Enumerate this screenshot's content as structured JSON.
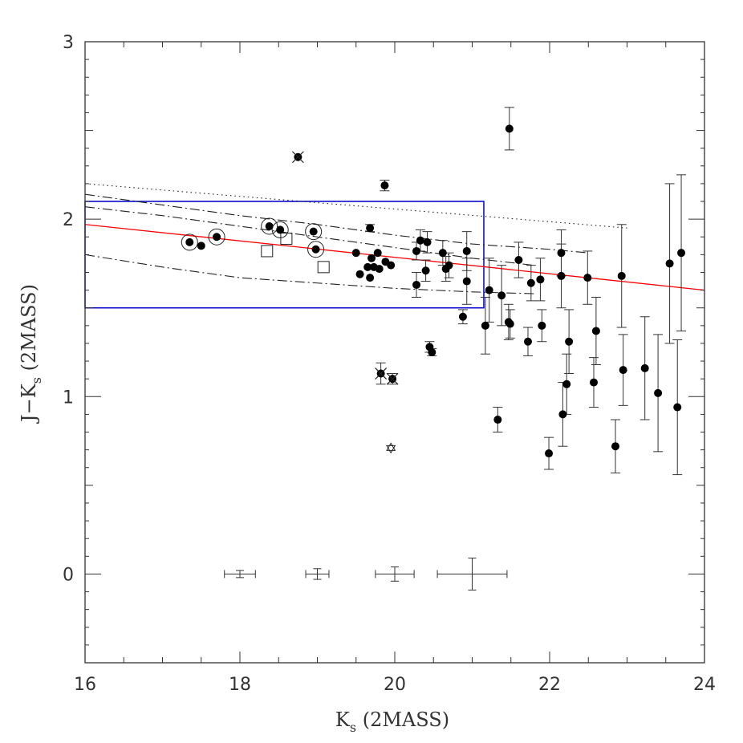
{
  "chart_data": {
    "type": "scatter",
    "title": "",
    "xlabel": {
      "main": "K",
      "sub": "s",
      "rest": " (2MASS)"
    },
    "ylabel": {
      "main": "J−K",
      "sub": "s",
      "rest": " (2MASS)"
    },
    "xlim": [
      16,
      24
    ],
    "ylim": [
      -0.5,
      3
    ],
    "xticks": [
      "16",
      "18",
      "20",
      "22",
      "24"
    ],
    "yticks": [
      "0",
      "1",
      "2",
      "3"
    ],
    "grid": false,
    "colors": {
      "frame": "#333333",
      "box": "#0000cc",
      "fit_line": "#ff0000",
      "points": "#000000"
    },
    "selection_box": {
      "x": [
        16,
        21.15
      ],
      "y": [
        1.5,
        2.1
      ]
    },
    "fit_line": {
      "x": [
        16,
        24
      ],
      "y": [
        1.97,
        1.6
      ]
    },
    "model_curves": [
      {
        "style": "dotted",
        "x": [
          16,
          23
        ],
        "y": [
          2.2,
          1.95
        ]
      },
      {
        "style": "dashdot",
        "x": [
          16,
          17,
          18,
          19,
          20,
          21,
          22,
          22.5
        ],
        "y": [
          2.14,
          2.08,
          2.02,
          1.97,
          1.91,
          1.86,
          1.83,
          1.81
        ]
      },
      {
        "style": "dashdot",
        "x": [
          16,
          17,
          18,
          19,
          20,
          21,
          21.8
        ],
        "y": [
          2.07,
          2.02,
          1.96,
          1.9,
          1.84,
          1.78,
          1.74
        ]
      },
      {
        "style": "dashdot",
        "x": [
          16,
          17,
          18,
          19,
          20,
          21,
          21.8
        ],
        "y": [
          1.8,
          1.73,
          1.67,
          1.64,
          1.61,
          1.59,
          1.58
        ]
      }
    ],
    "points_filled": [
      {
        "x": 17.35,
        "y": 1.87
      },
      {
        "x": 17.5,
        "y": 1.85
      },
      {
        "x": 17.7,
        "y": 1.9
      },
      {
        "x": 18.38,
        "y": 1.96
      },
      {
        "x": 18.52,
        "y": 1.94
      },
      {
        "x": 18.95,
        "y": 1.93
      },
      {
        "x": 18.98,
        "y": 1.83
      },
      {
        "x": 18.75,
        "y": 2.35
      },
      {
        "x": 19.5,
        "y": 1.81
      },
      {
        "x": 19.55,
        "y": 1.69
      },
      {
        "x": 19.65,
        "y": 1.73
      },
      {
        "x": 19.68,
        "y": 1.67
      },
      {
        "x": 19.7,
        "y": 1.78
      },
      {
        "x": 19.73,
        "y": 1.73
      },
      {
        "x": 19.78,
        "y": 1.81
      },
      {
        "x": 19.8,
        "y": 1.72
      },
      {
        "x": 19.88,
        "y": 1.76
      },
      {
        "x": 19.95,
        "y": 1.74
      },
      {
        "x": 19.68,
        "y": 1.95,
        "err": 0.02
      },
      {
        "x": 19.87,
        "y": 2.19,
        "err": 0.03
      },
      {
        "x": 19.82,
        "y": 1.13,
        "err": 0.06
      },
      {
        "x": 19.97,
        "y": 1.1,
        "err": 0.03
      },
      {
        "x": 20.28,
        "y": 1.82,
        "err": 0.05
      },
      {
        "x": 20.33,
        "y": 1.88,
        "err": 0.06
      },
      {
        "x": 20.42,
        "y": 1.87,
        "err": 0.06
      },
      {
        "x": 20.28,
        "y": 1.63,
        "err": 0.07
      },
      {
        "x": 20.4,
        "y": 1.71,
        "err": 0.06
      },
      {
        "x": 20.45,
        "y": 1.28,
        "err": 0.03
      },
      {
        "x": 20.48,
        "y": 1.25,
        "err": 0.02
      },
      {
        "x": 20.62,
        "y": 1.81,
        "err": 0.07
      },
      {
        "x": 20.66,
        "y": 1.72,
        "err": 0.07
      },
      {
        "x": 20.7,
        "y": 1.74,
        "err": 0.07
      },
      {
        "x": 20.88,
        "y": 1.45,
        "err": 0.04
      },
      {
        "x": 20.93,
        "y": 1.82,
        "err": 0.11
      },
      {
        "x": 20.93,
        "y": 1.65,
        "err": 0.13
      },
      {
        "x": 21.17,
        "y": 1.4,
        "err": 0.16
      },
      {
        "x": 21.22,
        "y": 1.6,
        "err": 0.18
      },
      {
        "x": 21.33,
        "y": 0.87,
        "err": 0.07
      },
      {
        "x": 21.38,
        "y": 1.57,
        "err": 0.17
      },
      {
        "x": 21.47,
        "y": 1.42,
        "err": 0.1
      },
      {
        "x": 21.49,
        "y": 1.41,
        "err": 0.08
      },
      {
        "x": 21.48,
        "y": 2.51,
        "err": 0.12
      },
      {
        "x": 21.6,
        "y": 1.77,
        "err": 0.1
      },
      {
        "x": 21.72,
        "y": 1.31,
        "err": 0.08
      },
      {
        "x": 21.76,
        "y": 1.64,
        "err": 0.1
      },
      {
        "x": 21.88,
        "y": 1.66,
        "err": 0.12
      },
      {
        "x": 21.9,
        "y": 1.4,
        "err": 0.09
      },
      {
        "x": 21.99,
        "y": 0.68,
        "err": 0.09
      },
      {
        "x": 22.15,
        "y": 1.81,
        "err": 0.13
      },
      {
        "x": 22.15,
        "y": 1.68,
        "err": 0.18
      },
      {
        "x": 22.17,
        "y": 0.9,
        "err": 0.18
      },
      {
        "x": 22.22,
        "y": 1.07,
        "err": 0.17
      },
      {
        "x": 22.25,
        "y": 1.31,
        "err": 0.18
      },
      {
        "x": 22.49,
        "y": 1.67,
        "err": 0.15
      },
      {
        "x": 22.57,
        "y": 1.08,
        "err": 0.14
      },
      {
        "x": 22.6,
        "y": 1.37,
        "err": 0.19
      },
      {
        "x": 22.85,
        "y": 0.72,
        "err": 0.15
      },
      {
        "x": 22.93,
        "y": 1.68,
        "err": 0.29
      },
      {
        "x": 22.95,
        "y": 1.15,
        "err": 0.2
      },
      {
        "x": 23.23,
        "y": 1.16,
        "err": 0.29
      },
      {
        "x": 23.4,
        "y": 1.02,
        "err": 0.33
      },
      {
        "x": 23.55,
        "y": 1.75,
        "err": 0.45
      },
      {
        "x": 23.65,
        "y": 0.94,
        "err": 0.38
      },
      {
        "x": 23.7,
        "y": 1.81,
        "err": 0.44
      }
    ],
    "points_circled": [
      {
        "x": 17.35,
        "y": 1.87
      },
      {
        "x": 17.7,
        "y": 1.9
      },
      {
        "x": 18.38,
        "y": 1.96
      },
      {
        "x": 18.52,
        "y": 1.94
      },
      {
        "x": 18.95,
        "y": 1.93
      },
      {
        "x": 18.98,
        "y": 1.83
      }
    ],
    "points_crossed": [
      {
        "x": 18.75,
        "y": 2.35
      },
      {
        "x": 19.82,
        "y": 1.13
      },
      {
        "x": 19.97,
        "y": 1.1
      }
    ],
    "points_open_square": [
      {
        "x": 18.35,
        "y": 1.82
      },
      {
        "x": 18.6,
        "y": 1.89
      },
      {
        "x": 19.08,
        "y": 1.73
      }
    ],
    "points_star": [
      {
        "x": 19.95,
        "y": 0.71
      }
    ],
    "reference_errorbars": [
      {
        "x": 18.0,
        "y": 0,
        "xerr": 0.2,
        "yerr": 0.02
      },
      {
        "x": 19.0,
        "y": 0,
        "xerr": 0.15,
        "yerr": 0.03
      },
      {
        "x": 20.0,
        "y": 0,
        "xerr": 0.25,
        "yerr": 0.04
      },
      {
        "x": 21.0,
        "y": 0,
        "xerr": 0.45,
        "yerr": 0.09
      }
    ]
  }
}
